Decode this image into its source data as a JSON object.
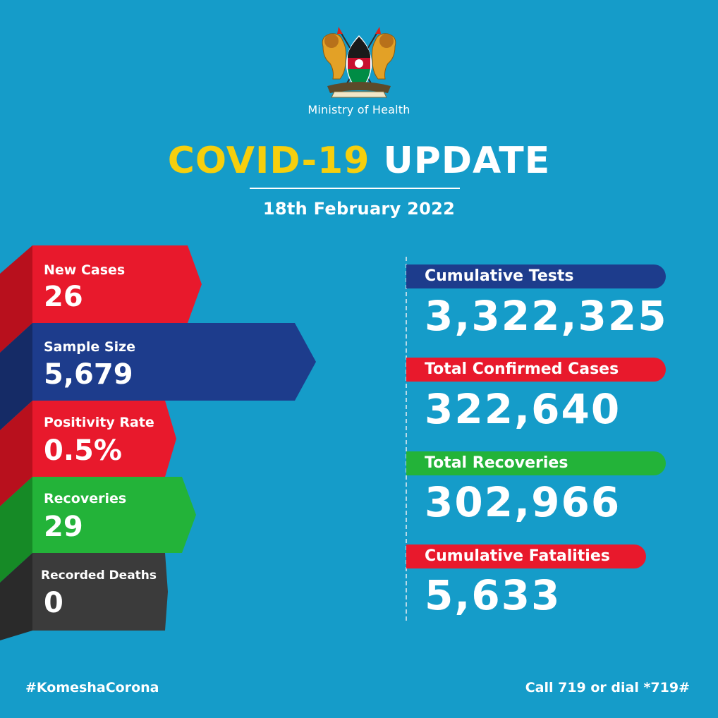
{
  "header": {
    "ministry": "Ministry of Health",
    "title_part1": "COVID-19",
    "title_part2": "UPDATE",
    "date": "18th February 2022",
    "emblem_motto": "HARAMBEE"
  },
  "daily_stats": [
    {
      "label": "New Cases",
      "value": "26",
      "color": "#e8192c"
    },
    {
      "label": "Sample Size",
      "value": "5,679",
      "color": "#1d3c8c"
    },
    {
      "label": "Positivity Rate",
      "value": "0.5%",
      "color": "#e8192c"
    },
    {
      "label": "Recoveries",
      "value": "29",
      "color": "#23b339"
    },
    {
      "label": "Recorded Deaths",
      "value": "0",
      "color": "#3b3b3b"
    }
  ],
  "cumulative": [
    {
      "label": "Cumulative Tests",
      "value": "3,322,325",
      "color": "#1d3c8c"
    },
    {
      "label": "Total Confirmed Cases",
      "value": "322,640",
      "color": "#e8192c"
    },
    {
      "label": "Total Recoveries",
      "value": "302,966",
      "color": "#23b339"
    },
    {
      "label": "Cumulative Fatalities",
      "value": "5,633",
      "color": "#e8192c"
    }
  ],
  "footer": {
    "hashtag": "#KomeshaCorona",
    "helpline": "Call 719 or dial *719#"
  },
  "colors": {
    "background": "#159cc9",
    "accent_yellow": "#f6cf0d"
  }
}
